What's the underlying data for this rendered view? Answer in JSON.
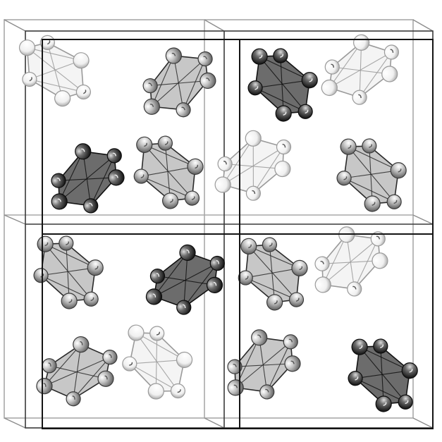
{
  "figure": {
    "kind": "crystal-lattice-packing",
    "cells": {
      "columns": 2,
      "rows": 2,
      "layers": 2
    },
    "shade_levels": [
      "light",
      "mid",
      "dark"
    ],
    "colors": {
      "background": "#ffffff",
      "back_frame": "#aaaaaa",
      "front_frame": "#1a1a1a",
      "light_fill": "#f4f4f4",
      "light_edge": "#9a9a9a",
      "mid_fill": "#c7c7c7",
      "mid_edge": "#2a2a2a",
      "dark_fill": "#6c6c6c",
      "dark_edge": "#111111",
      "atom_light": "#ffffff",
      "atom_mid": "#cfcfcf",
      "atom_dark": "#3a3a3a"
    }
  }
}
